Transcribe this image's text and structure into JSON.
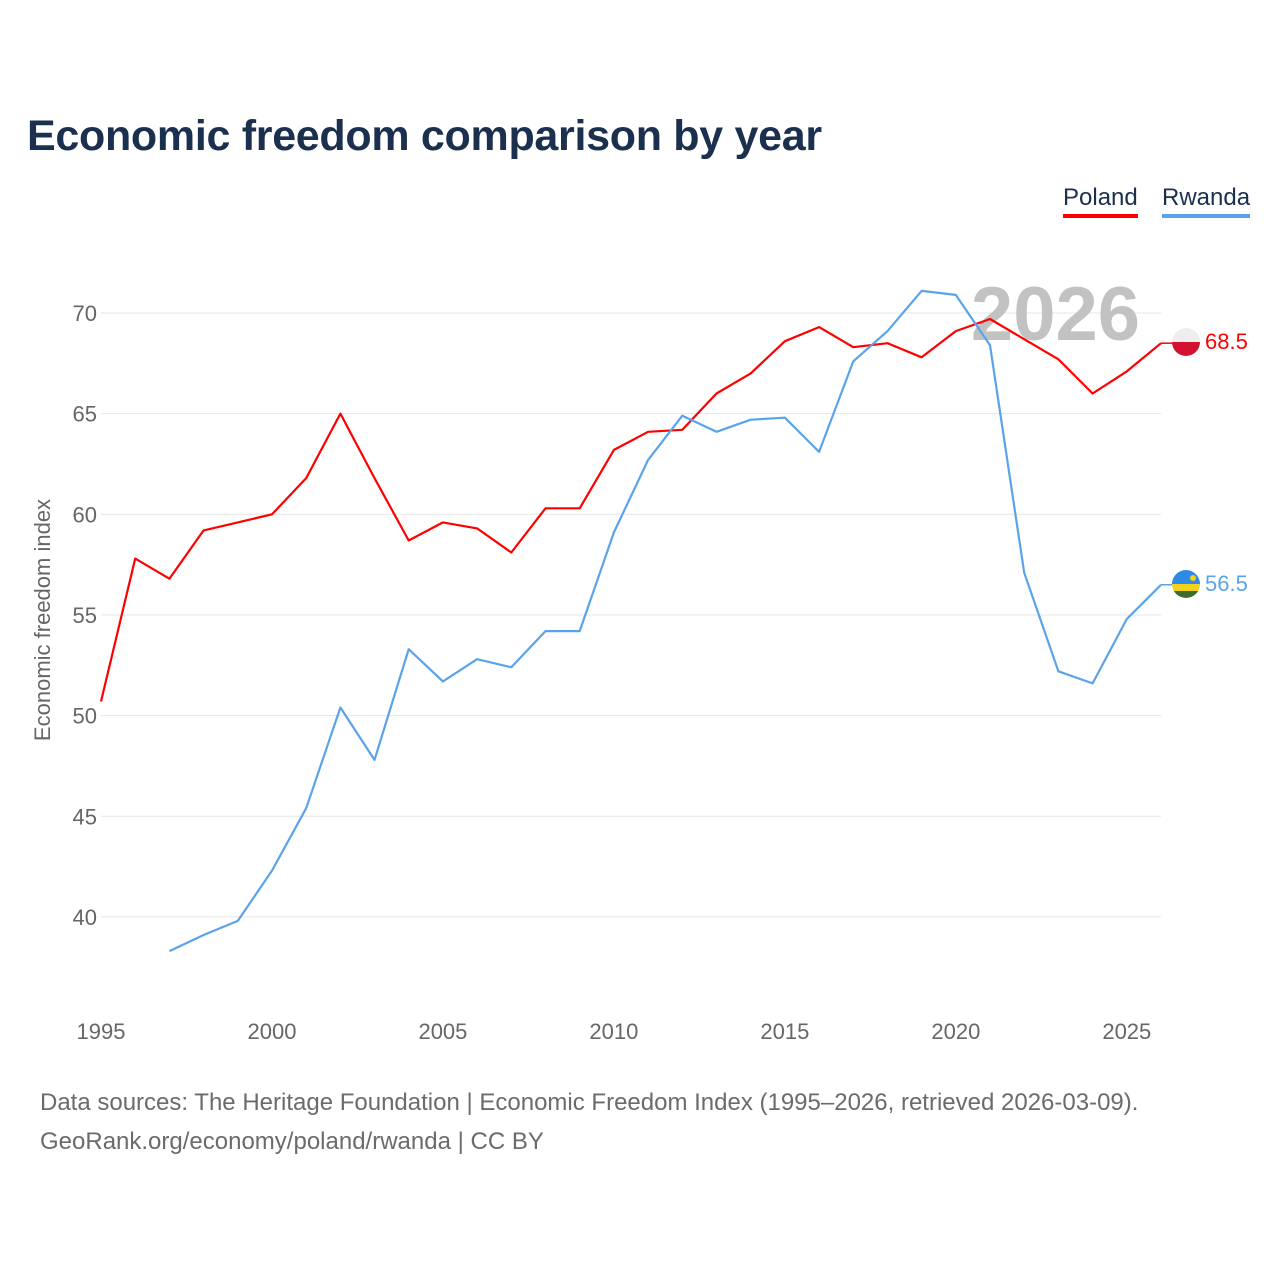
{
  "title": "Economic freedom comparison by year",
  "legend": [
    {
      "name": "Poland",
      "color": "#ff0000"
    },
    {
      "name": "Rwanda",
      "color": "#5aa3ea"
    }
  ],
  "watermark_year": "2026",
  "footer": {
    "line1": "Data sources: The Heritage Foundation | Economic Freedom Index (1995–2026, retrieved 2026-03-09).",
    "line2": "GeoRank.org/economy/poland/rwanda | CC BY"
  },
  "chart_data": {
    "type": "line",
    "title": "Economic freedom comparison by year",
    "xlabel": "",
    "ylabel": "Economic freedom index",
    "xlim": [
      1995,
      2026
    ],
    "ylim": [
      36,
      73
    ],
    "xticks": [
      1995,
      2000,
      2005,
      2010,
      2015,
      2020,
      2025
    ],
    "yticks": [
      40,
      45,
      50,
      55,
      60,
      65,
      70
    ],
    "grid": true,
    "legend_position": "top-right",
    "series": [
      {
        "name": "Poland",
        "color": "#ff0000",
        "end_label": "68.5",
        "x": [
          1995,
          1996,
          1997,
          1998,
          1999,
          2000,
          2001,
          2002,
          2003,
          2004,
          2005,
          2006,
          2007,
          2008,
          2009,
          2010,
          2011,
          2012,
          2013,
          2014,
          2015,
          2016,
          2017,
          2018,
          2019,
          2020,
          2021,
          2022,
          2023,
          2024,
          2025,
          2026
        ],
        "values": [
          50.7,
          57.8,
          56.8,
          59.2,
          59.6,
          60.0,
          61.8,
          65.0,
          61.8,
          58.7,
          59.6,
          59.3,
          58.1,
          60.3,
          60.3,
          63.2,
          64.1,
          64.2,
          66.0,
          67.0,
          68.6,
          69.3,
          68.3,
          68.5,
          67.8,
          69.1,
          69.7,
          68.7,
          67.7,
          66.0,
          67.1,
          68.5
        ]
      },
      {
        "name": "Rwanda",
        "color": "#5aa3ea",
        "end_label": "56.5",
        "x": [
          1997,
          1998,
          1999,
          2000,
          2001,
          2002,
          2003,
          2004,
          2005,
          2006,
          2007,
          2008,
          2009,
          2010,
          2011,
          2012,
          2013,
          2014,
          2015,
          2016,
          2017,
          2018,
          2019,
          2020,
          2021,
          2022,
          2023,
          2024,
          2025,
          2026
        ],
        "values": [
          38.3,
          39.1,
          39.8,
          42.3,
          45.4,
          50.4,
          47.8,
          53.3,
          51.7,
          52.8,
          52.4,
          54.2,
          54.2,
          59.1,
          62.7,
          64.9,
          64.1,
          64.7,
          64.8,
          63.1,
          67.6,
          69.1,
          71.1,
          70.9,
          68.4,
          57.1,
          52.2,
          51.6,
          54.8,
          56.5
        ]
      }
    ]
  }
}
